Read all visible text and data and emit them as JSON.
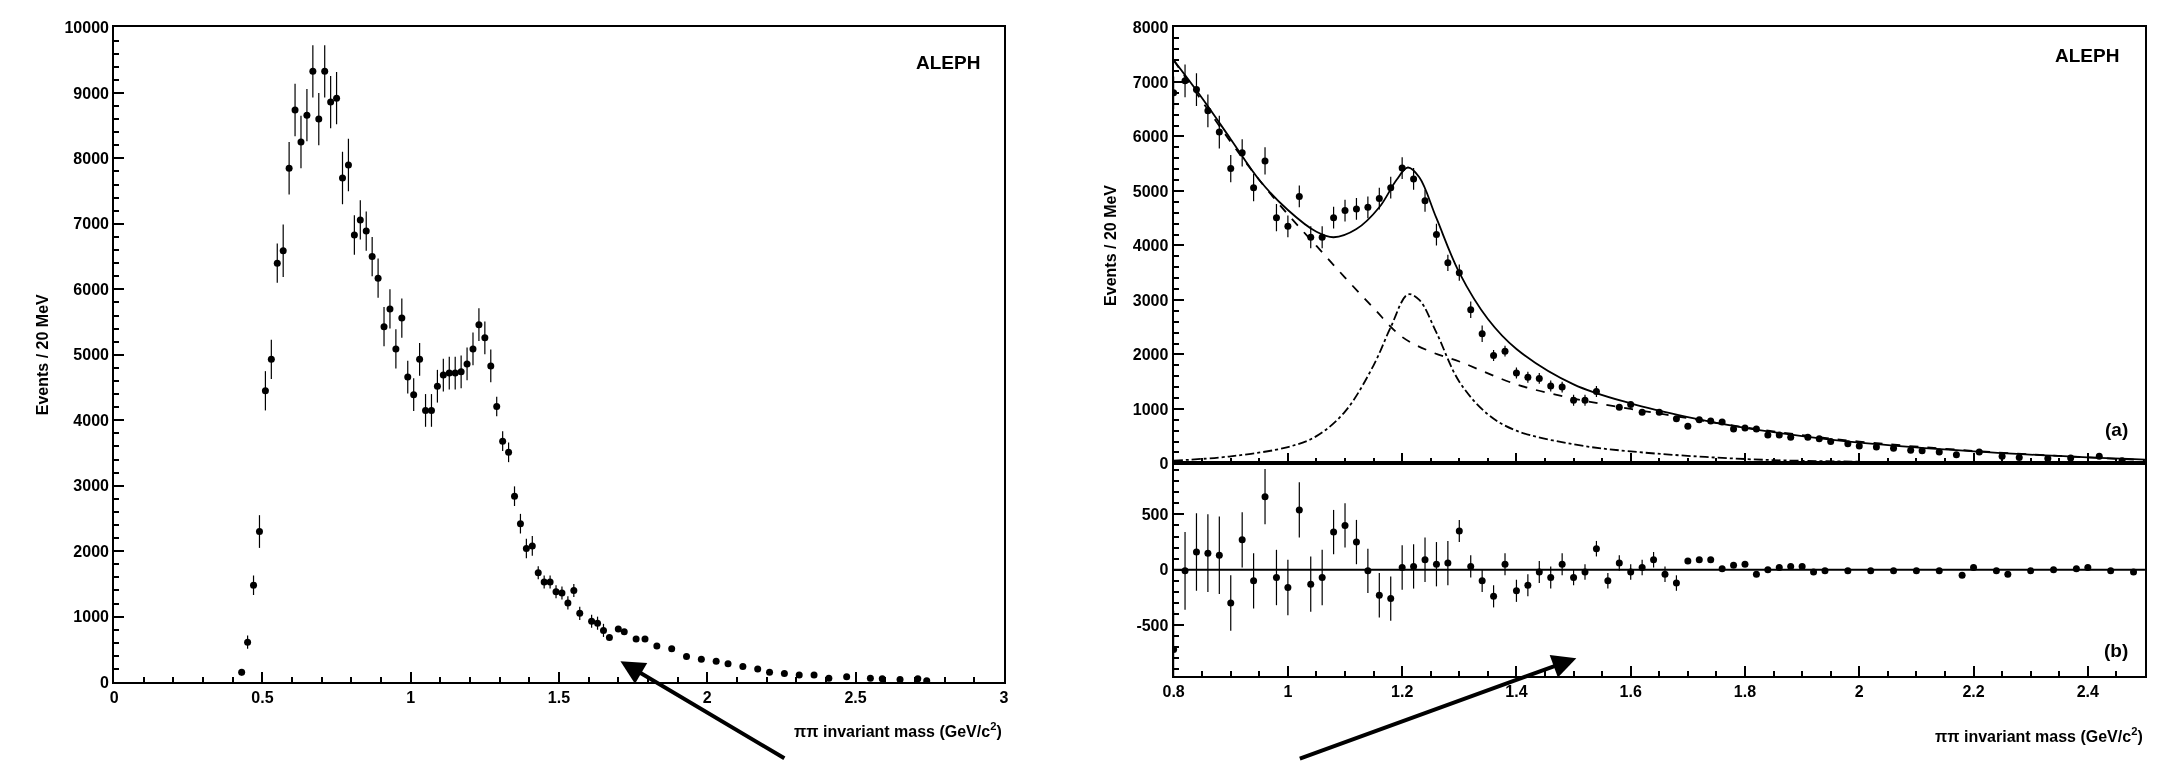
{
  "chart_data": [
    {
      "type": "scatter",
      "xlabel": "ππ invariant mass (GeV/c$^{2}$)",
      "ylabel": "Events / 20 MeV",
      "xlim": [
        0,
        3
      ],
      "ylim": [
        0,
        10000
      ],
      "xticks": [
        0,
        0.5,
        1,
        1.5,
        2,
        2.5,
        3
      ],
      "yticks": [
        0,
        1000,
        2000,
        3000,
        4000,
        5000,
        6000,
        7000,
        8000,
        9000,
        10000
      ],
      "marker": "circle",
      "annotations": [
        "ALEPH"
      ],
      "series": [
        {
          "color": "#000000",
          "x": [
            0.43,
            0.45,
            0.47,
            0.49,
            0.51,
            0.53,
            0.55,
            0.57,
            0.59,
            0.61,
            0.63,
            0.65,
            0.67,
            0.69,
            0.71,
            0.73,
            0.75,
            0.77,
            0.79,
            0.81,
            0.83,
            0.85,
            0.87,
            0.89,
            0.91,
            0.93,
            0.95,
            0.97,
            0.99,
            1.01,
            1.03,
            1.05,
            1.07,
            1.09,
            1.11,
            1.13,
            1.15,
            1.17,
            1.19,
            1.21,
            1.23,
            1.25,
            1.27,
            1.29,
            1.31,
            1.33,
            1.35,
            1.37,
            1.39,
            1.41,
            1.43,
            1.45,
            1.47,
            1.49,
            1.51,
            1.53,
            1.55,
            1.57,
            1.61,
            1.63,
            1.65,
            1.67,
            1.7,
            1.72,
            1.76,
            1.79,
            1.83,
            1.88,
            1.93,
            1.98,
            2.03,
            2.07,
            2.12,
            2.17,
            2.21,
            2.26,
            2.31,
            2.36,
            2.41,
            2.47,
            2.55,
            2.59,
            2.65,
            2.71,
            2.74
          ],
          "values": [
            150,
            610,
            1480,
            2300,
            4450,
            4930,
            6400,
            6590,
            7850,
            8740,
            8250,
            8660,
            9330,
            8600,
            9330,
            8860,
            8920,
            7700,
            7900,
            6830,
            7060,
            6890,
            6500,
            6170,
            5430,
            5700,
            5090,
            5560,
            4660,
            4390,
            4930,
            4150,
            4150,
            4520,
            4690,
            4720,
            4720,
            4740,
            4860,
            5090,
            5460,
            5260,
            4830,
            4210,
            3680,
            3510,
            2840,
            2420,
            2040,
            2080,
            1670,
            1530,
            1530,
            1380,
            1360,
            1210,
            1400,
            1050,
            930,
            900,
            790,
            680,
            810,
            770,
            660,
            660,
            550,
            510,
            390,
            350,
            320,
            280,
            240,
            200,
            150,
            130,
            110,
            110,
            60,
            80,
            60,
            50,
            40,
            50,
            20
          ],
          "errors": [
            50,
            100,
            150,
            250,
            300,
            300,
            300,
            400,
            400,
            400,
            400,
            400,
            400,
            400,
            400,
            400,
            400,
            400,
            400,
            300,
            300,
            300,
            300,
            300,
            300,
            300,
            300,
            300,
            250,
            250,
            250,
            250,
            250,
            250,
            250,
            250,
            250,
            250,
            250,
            250,
            250,
            250,
            250,
            150,
            150,
            150,
            150,
            150,
            150,
            150,
            100,
            100,
            100,
            100,
            100,
            100,
            100,
            100,
            100,
            100,
            100,
            null,
            null,
            null,
            null,
            null,
            null,
            null,
            null,
            null,
            null,
            null,
            null,
            null,
            null,
            null,
            null,
            null,
            null,
            null,
            null,
            null,
            null,
            null,
            null
          ]
        }
      ]
    },
    {
      "type": "scatter",
      "ylabel": "Events / 20 MeV",
      "xlim": [
        0.8,
        2.5
      ],
      "ylim": [
        0,
        8000
      ],
      "xticks": [
        0.8,
        1,
        1.2,
        1.4,
        1.6,
        1.8,
        2,
        2.2,
        2.4
      ],
      "yticks": [
        0,
        1000,
        2000,
        3000,
        4000,
        5000,
        6000,
        7000,
        8000
      ],
      "tick_labels": "y",
      "marker": "circle",
      "annotations": [
        "ALEPH",
        "(a)"
      ],
      "series": [
        {
          "color": "#000000",
          "x": [
            0.8,
            0.82,
            0.84,
            0.86,
            0.88,
            0.9,
            0.92,
            0.94,
            0.96,
            0.98,
            1.0,
            1.02,
            1.04,
            1.06,
            1.08,
            1.1,
            1.12,
            1.14,
            1.16,
            1.18,
            1.2,
            1.22,
            1.24,
            1.26,
            1.28,
            1.3,
            1.32,
            1.34,
            1.36,
            1.38,
            1.4,
            1.42,
            1.44,
            1.46,
            1.48,
            1.5,
            1.52,
            1.54,
            1.58,
            1.6,
            1.62,
            1.65,
            1.68,
            1.7,
            1.72,
            1.74,
            1.76,
            1.78,
            1.8,
            1.82,
            1.84,
            1.86,
            1.88,
            1.91,
            1.93,
            1.95,
            1.98,
            2.0,
            2.03,
            2.06,
            2.09,
            2.11,
            2.14,
            2.17,
            2.21,
            2.25,
            2.28,
            2.33,
            2.37,
            2.42,
            2.46
          ],
          "values": [
            6800,
            7020,
            6860,
            6470,
            6080,
            5410,
            5700,
            5060,
            5550,
            4510,
            4350,
            4900,
            4150,
            4150,
            4510,
            4640,
            4670,
            4700,
            4860,
            5060,
            5420,
            5220,
            4820,
            4200,
            3680,
            3500,
            2820,
            2380,
            1980,
            2060,
            1660,
            1580,
            1560,
            1420,
            1400,
            1160,
            1160,
            1320,
            1030,
            1080,
            940,
            940,
            820,
            680,
            800,
            780,
            760,
            630,
            650,
            630,
            520,
            520,
            480,
            480,
            450,
            400,
            360,
            320,
            300,
            280,
            240,
            230,
            210,
            160,
            210,
            130,
            110,
            90,
            100,
            130,
            50
          ],
          "errors": [
            300,
            300,
            300,
            300,
            300,
            250,
            250,
            250,
            250,
            250,
            200,
            200,
            200,
            200,
            200,
            200,
            200,
            200,
            200,
            200,
            200,
            200,
            200,
            200,
            150,
            150,
            150,
            150,
            100,
            100,
            100,
            100,
            100,
            100,
            100,
            100,
            100,
            100,
            null,
            null,
            null,
            null,
            null,
            null,
            null,
            null,
            null,
            null,
            null,
            null,
            null,
            null,
            null,
            null,
            null,
            null,
            null,
            null,
            null,
            null,
            null,
            null,
            null,
            null,
            null,
            null,
            null,
            null,
            null,
            null,
            null
          ]
        },
        {
          "type": "line",
          "line_style": "solid",
          "marker": "none",
          "color": "#000000",
          "x": [
            0.8,
            0.85,
            0.9,
            0.95,
            1.0,
            1.05,
            1.08,
            1.12,
            1.16,
            1.19,
            1.21,
            1.23,
            1.26,
            1.3,
            1.35,
            1.4,
            1.5,
            1.6,
            1.7,
            1.8,
            1.9,
            2.0,
            2.2,
            2.4,
            2.5
          ],
          "values": [
            7400,
            6700,
            5950,
            5200,
            4650,
            4250,
            4150,
            4300,
            4700,
            5200,
            5430,
            5250,
            4500,
            3500,
            2650,
            2100,
            1450,
            1100,
            850,
            650,
            500,
            380,
            220,
            110,
            70
          ]
        },
        {
          "type": "line",
          "line_style": "dashed",
          "marker": "none",
          "color": "#000000",
          "x": [
            0.8,
            0.9,
            0.95,
            1.0,
            1.05,
            1.1,
            1.15,
            1.2,
            1.25,
            1.3,
            1.4,
            1.5,
            1.6,
            1.7,
            1.8,
            1.9,
            2.0,
            2.2,
            2.4,
            2.5
          ],
          "values": [
            7400,
            5900,
            5200,
            4570,
            3990,
            3410,
            2850,
            2320,
            2050,
            1870,
            1450,
            1190,
            1000,
            830,
            660,
            520,
            400,
            230,
            110,
            60
          ]
        },
        {
          "type": "line",
          "line_style": "dashdot",
          "marker": "none",
          "color": "#000000",
          "x": [
            0.8,
            0.9,
            1.0,
            1.05,
            1.1,
            1.15,
            1.18,
            1.21,
            1.23,
            1.26,
            1.3,
            1.35,
            1.4,
            1.5,
            1.6,
            1.8,
            2.0,
            2.5
          ],
          "values": [
            50,
            130,
            300,
            500,
            950,
            1800,
            2500,
            3100,
            3000,
            2400,
            1500,
            900,
            600,
            350,
            220,
            80,
            30,
            0
          ]
        }
      ]
    },
    {
      "type": "scatter",
      "xlabel": "ππ invariant mass (GeV/c$^{2}$)",
      "xlim": [
        0.8,
        2.5
      ],
      "ylim": [
        -960,
        960
      ],
      "xticks": [
        0.8,
        1,
        1.2,
        1.4,
        1.6,
        1.8,
        2,
        2.2,
        2.4
      ],
      "yticks": [
        -500,
        0,
        500
      ],
      "marker": "circle",
      "annotations": [
        "(b)"
      ],
      "ref_lines": [
        {
          "axis": "y",
          "value": 0
        }
      ],
      "series": [
        {
          "color": "#000000",
          "x": [
            0.8,
            0.82,
            0.84,
            0.86,
            0.88,
            0.9,
            0.92,
            0.94,
            0.96,
            0.98,
            1.0,
            1.02,
            1.04,
            1.06,
            1.08,
            1.1,
            1.12,
            1.14,
            1.16,
            1.18,
            1.2,
            1.22,
            1.24,
            1.26,
            1.28,
            1.3,
            1.32,
            1.34,
            1.36,
            1.38,
            1.4,
            1.42,
            1.44,
            1.46,
            1.48,
            1.5,
            1.52,
            1.54,
            1.56,
            1.58,
            1.6,
            1.62,
            1.64,
            1.66,
            1.68,
            1.7,
            1.72,
            1.74,
            1.76,
            1.78,
            1.8,
            1.82,
            1.84,
            1.86,
            1.88,
            1.9,
            1.92,
            1.94,
            1.98,
            2.02,
            2.06,
            2.1,
            2.14,
            2.18,
            2.2,
            2.24,
            2.26,
            2.3,
            2.34,
            2.38,
            2.4,
            2.44,
            2.48
          ],
          "values": [
            -720,
            -10,
            160,
            150,
            130,
            -300,
            270,
            -100,
            660,
            -70,
            -160,
            540,
            -130,
            -70,
            340,
            400,
            250,
            -10,
            -230,
            -260,
            20,
            30,
            90,
            50,
            60,
            350,
            30,
            -100,
            -240,
            50,
            -190,
            -140,
            -20,
            -70,
            50,
            -70,
            -20,
            190,
            -100,
            60,
            -20,
            20,
            90,
            -40,
            -120,
            80,
            90,
            90,
            10,
            40,
            50,
            -40,
            0,
            20,
            30,
            30,
            -20,
            -10,
            -10,
            -10,
            -10,
            -10,
            -10,
            -50,
            20,
            -10,
            -40,
            -10,
            0,
            10,
            20,
            -10,
            -20
          ],
          "errors": [
            350,
            350,
            350,
            350,
            350,
            250,
            250,
            250,
            250,
            250,
            250,
            250,
            250,
            250,
            200,
            200,
            200,
            200,
            200,
            200,
            200,
            200,
            200,
            200,
            200,
            100,
            100,
            100,
            100,
            100,
            100,
            100,
            100,
            100,
            100,
            70,
            70,
            70,
            70,
            70,
            70,
            70,
            70,
            70,
            70,
            null,
            null,
            null,
            null,
            null,
            null,
            null,
            null,
            null,
            null,
            null,
            null,
            null,
            null,
            null,
            null,
            null,
            null,
            null,
            null,
            null,
            null,
            null,
            null,
            null,
            null,
            null,
            null
          ]
        }
      ]
    }
  ]
}
